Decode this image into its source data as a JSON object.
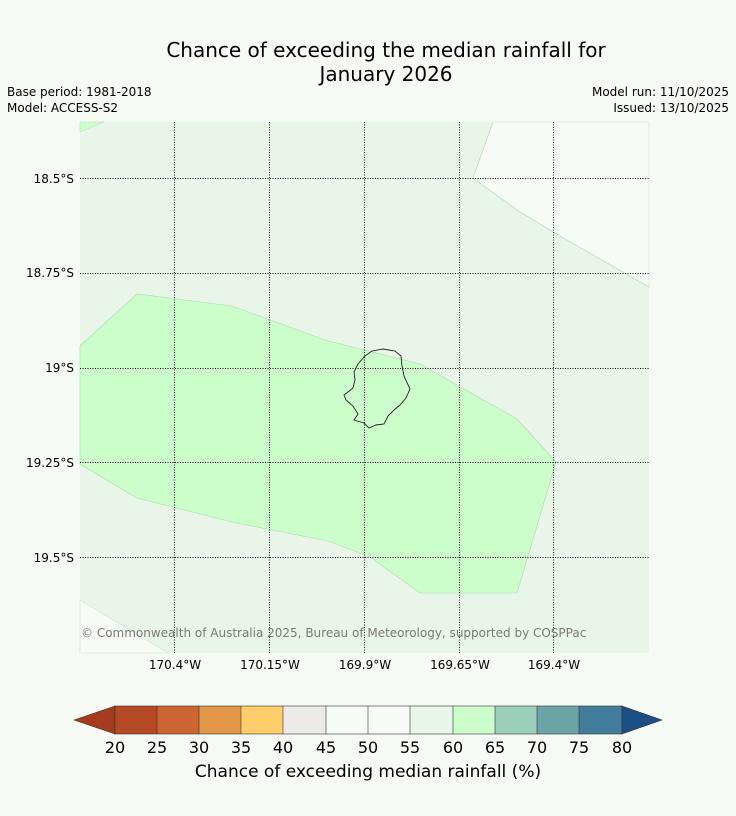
{
  "title_line1": "Chance of exceeding the median rainfall for",
  "title_line2": "January 2026",
  "meta_left": {
    "base_period": "Base period: 1981-2018",
    "model": "Model: ACCESS-S2"
  },
  "meta_right": {
    "model_run": "Model run: 11/10/2025",
    "issued": "Issued: 13/10/2025"
  },
  "lat_ticks": [
    "18.5°S",
    "18.75°S",
    "19°S",
    "19.25°S",
    "19.5°S"
  ],
  "lon_ticks": [
    "170.4°W",
    "170.15°W",
    "169.9°W",
    "169.65°W",
    "169.4°W"
  ],
  "copyright": "© Commonwealth of Australia 2025, Bureau of Meteorology, supported by COSPPac",
  "colorbar": {
    "label": "Chance of exceeding median rainfall (%)",
    "ticks": [
      "20",
      "25",
      "30",
      "35",
      "40",
      "45",
      "50",
      "55",
      "60",
      "65",
      "70",
      "75",
      "80"
    ],
    "colors": [
      "#a63a1e",
      "#b74a26",
      "#cd6432",
      "#e39648",
      "#fecd6a",
      "#ecebe6",
      "#f7fbf6",
      "#f7fbf6",
      "#e9f5e8",
      "#ccfecc",
      "#9ccfba",
      "#6ba3a6",
      "#427c9b",
      "#1b4f85"
    ]
  },
  "map_colors": {
    "background_class": "#e9f5e8",
    "island_class": "#ccfecc",
    "outer_region": "#f7fbf6",
    "coastline": "#222222"
  }
}
